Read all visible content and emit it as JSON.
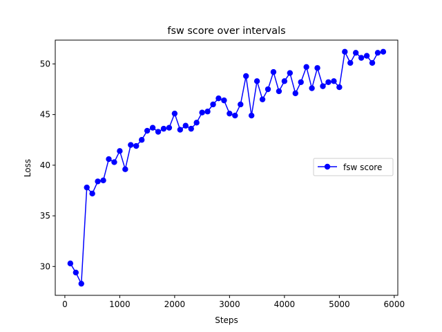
{
  "chart_data": {
    "type": "line",
    "title": "fsw score over intervals",
    "xlabel": "Steps",
    "ylabel": "Loss",
    "xlim": [
      -175,
      6065
    ],
    "ylim": [
      27.15,
      52.35
    ],
    "xticks": [
      0,
      1000,
      2000,
      3000,
      4000,
      5000,
      6000
    ],
    "yticks": [
      30,
      35,
      40,
      45,
      50
    ],
    "grid": false,
    "legend_position": "center-right",
    "series": [
      {
        "name": "fsw score",
        "color": "#0000ff",
        "marker": "circle",
        "x": [
          100,
          200,
          300,
          400,
          500,
          600,
          700,
          800,
          900,
          1000,
          1100,
          1200,
          1300,
          1400,
          1500,
          1600,
          1700,
          1800,
          1900,
          2000,
          2100,
          2200,
          2300,
          2400,
          2500,
          2600,
          2700,
          2800,
          2900,
          3000,
          3100,
          3200,
          3300,
          3400,
          3500,
          3600,
          3700,
          3800,
          3900,
          4000,
          4100,
          4200,
          4300,
          4400,
          4500,
          4600,
          4700,
          4800,
          4900,
          5000,
          5100,
          5200,
          5300,
          5400,
          5500,
          5600,
          5700,
          5800
        ],
        "y": [
          30.3,
          29.4,
          28.3,
          37.8,
          37.2,
          38.4,
          38.5,
          40.6,
          40.3,
          41.4,
          39.6,
          42.0,
          41.9,
          42.5,
          43.4,
          43.7,
          43.3,
          43.6,
          43.7,
          45.1,
          43.5,
          43.9,
          43.6,
          44.2,
          45.2,
          45.3,
          46.0,
          46.6,
          46.4,
          45.1,
          44.9,
          46.0,
          48.8,
          44.9,
          48.3,
          46.5,
          47.5,
          49.2,
          47.3,
          48.3,
          49.1,
          47.1,
          48.2,
          49.7,
          47.6,
          49.6,
          47.8,
          48.2,
          48.3,
          47.7,
          51.2,
          50.1,
          51.1,
          50.6,
          50.8,
          50.1,
          51.1,
          51.2
        ]
      }
    ]
  }
}
